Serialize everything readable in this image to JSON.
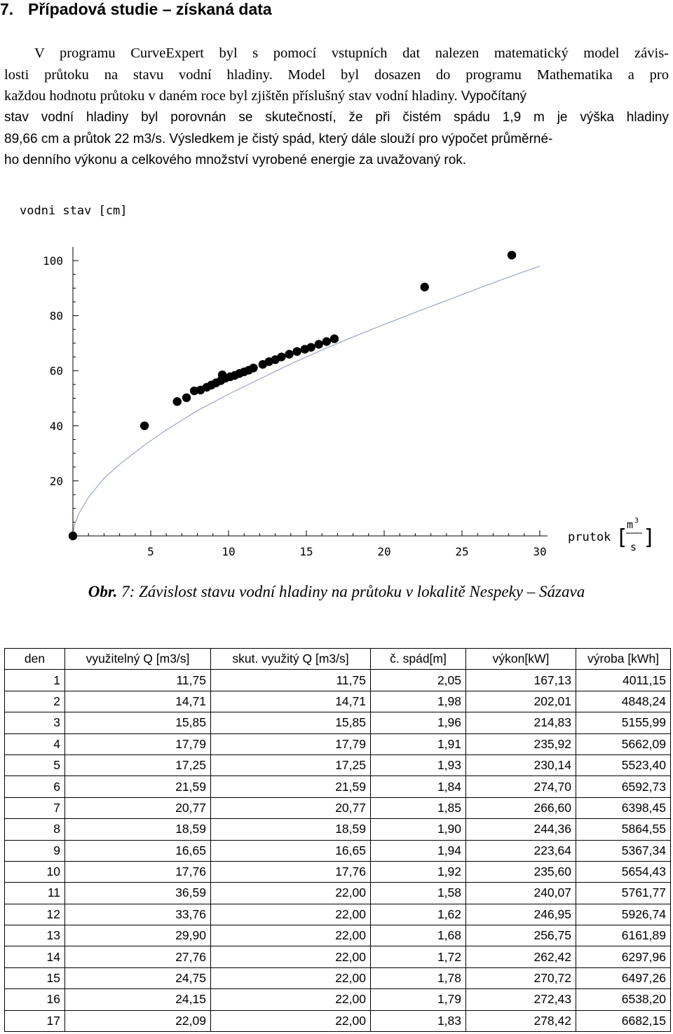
{
  "section": {
    "number": "7.",
    "title": "Případová studie – získaná data"
  },
  "paragraph": {
    "lines": [
      "V programu CurveExpert byl s pomocí vstupních dat nalezen matematický model závis-",
      "losti průtoku na stavu vodní hladiny. Model byl dosazen do programu Mathematika a pro",
      "každou hodnotu průtoku v daném roce byl zjištěn příslušný stav vodní hladiny.",
      "Vypočítaný",
      "stav vodní hladiny byl porovnán se skutečností, že při čistém spádu 1,9 m je výška hladiny",
      "89,66 cm a průtok 22 m3/s.",
      "Výsledkem je čistý spád, který dále slouží pro výpočet průměrné-",
      "ho denního výkonu a celkového množství vyrobené energie za uvažovaný rok."
    ]
  },
  "chart_data": {
    "type": "scatter",
    "ylabel": "vodni stav [cm]",
    "xlabel_text": "prutok",
    "xlabel_unit_num": "m",
    "xlabel_unit_sup": "3",
    "xlabel_unit_den": "s",
    "x_ticks": [
      "5",
      "10",
      "15",
      "20",
      "25",
      "30"
    ],
    "y_ticks": [
      "20",
      "40",
      "60",
      "80",
      "100"
    ],
    "xlim": [
      0,
      30.5
    ],
    "ylim": [
      0,
      105
    ],
    "series": [
      {
        "points": [
          [
            0.0,
            0.0
          ],
          [
            4.6,
            40.0
          ],
          [
            6.7,
            48.8
          ],
          [
            7.3,
            50.2
          ],
          [
            7.8,
            52.7
          ],
          [
            8.2,
            53.0
          ],
          [
            8.6,
            54.0
          ],
          [
            8.9,
            54.8
          ],
          [
            9.2,
            55.6
          ],
          [
            9.5,
            56.4
          ],
          [
            9.8,
            57.3
          ],
          [
            9.6,
            58.5
          ],
          [
            10.1,
            57.8
          ],
          [
            10.4,
            58.3
          ],
          [
            10.7,
            59.0
          ],
          [
            11.0,
            59.6
          ],
          [
            11.3,
            60.2
          ],
          [
            11.6,
            61.0
          ],
          [
            12.2,
            62.3
          ],
          [
            12.6,
            63.3
          ],
          [
            13.0,
            64.0
          ],
          [
            13.4,
            65.0
          ],
          [
            13.9,
            66.0
          ],
          [
            14.4,
            67.0
          ],
          [
            14.9,
            67.8
          ],
          [
            15.3,
            68.5
          ],
          [
            15.8,
            69.6
          ],
          [
            16.3,
            70.6
          ],
          [
            16.8,
            71.6
          ],
          [
            22.6,
            90.4
          ],
          [
            28.2,
            102.0
          ]
        ]
      },
      {
        "fit_curve": [
          [
            0.0,
            0.0
          ],
          [
            0.1,
            4.0
          ],
          [
            0.4,
            8.3
          ],
          [
            1.0,
            14.0
          ],
          [
            2.0,
            21.0
          ],
          [
            3.0,
            26.0
          ],
          [
            4.6,
            33.0
          ],
          [
            6.0,
            38.5
          ],
          [
            8.0,
            45.5
          ],
          [
            10.0,
            51.5
          ],
          [
            12.0,
            57.0
          ],
          [
            14.0,
            62.5
          ],
          [
            16.0,
            67.5
          ],
          [
            18.0,
            72.3
          ],
          [
            20.0,
            76.8
          ],
          [
            22.0,
            81.2
          ],
          [
            24.0,
            85.5
          ],
          [
            26.0,
            89.8
          ],
          [
            28.0,
            94.0
          ],
          [
            30.0,
            98.0
          ]
        ]
      }
    ]
  },
  "caption": {
    "prefix": "Obr.",
    "text": " 7: Závislost stavu vodní hladiny na průtoku v lokalitě Nespeky – Sázava"
  },
  "table": {
    "headers": [
      "den",
      "využitelný Q [m3/s]",
      "skut. využitý Q [m3/s]",
      "č. spád[m]",
      "výkon[kW]",
      "výroba [kWh]"
    ],
    "rows": [
      [
        "1",
        "11,75",
        "11,75",
        "2,05",
        "167,13",
        "4011,15"
      ],
      [
        "2",
        "14,71",
        "14,71",
        "1,98",
        "202,01",
        "4848,24"
      ],
      [
        "3",
        "15,85",
        "15,85",
        "1,96",
        "214,83",
        "5155,99"
      ],
      [
        "4",
        "17,79",
        "17,79",
        "1,91",
        "235,92",
        "5662,09"
      ],
      [
        "5",
        "17,25",
        "17,25",
        "1,93",
        "230,14",
        "5523,40"
      ],
      [
        "6",
        "21,59",
        "21,59",
        "1,84",
        "274,70",
        "6592,73"
      ],
      [
        "7",
        "20,77",
        "20,77",
        "1,85",
        "266,60",
        "6398,45"
      ],
      [
        "8",
        "18,59",
        "18,59",
        "1,90",
        "244,36",
        "5864,55"
      ],
      [
        "9",
        "16,65",
        "16,65",
        "1,94",
        "223,64",
        "5367,34"
      ],
      [
        "10",
        "17,76",
        "17,76",
        "1,92",
        "235,60",
        "5654,43"
      ],
      [
        "11",
        "36,59",
        "22,00",
        "1,58",
        "240,07",
        "5761,77"
      ],
      [
        "12",
        "33,76",
        "22,00",
        "1,62",
        "246,95",
        "5926,74"
      ],
      [
        "13",
        "29,90",
        "22,00",
        "1,68",
        "256,75",
        "6161,89"
      ],
      [
        "14",
        "27,76",
        "22,00",
        "1,72",
        "262,42",
        "6297,96"
      ],
      [
        "15",
        "24,75",
        "22,00",
        "1,78",
        "270,72",
        "6497,26"
      ],
      [
        "16",
        "24,15",
        "22,00",
        "1,79",
        "272,43",
        "6538,20"
      ],
      [
        "17",
        "22,09",
        "22,00",
        "1,83",
        "278,42",
        "6682,15"
      ]
    ]
  }
}
